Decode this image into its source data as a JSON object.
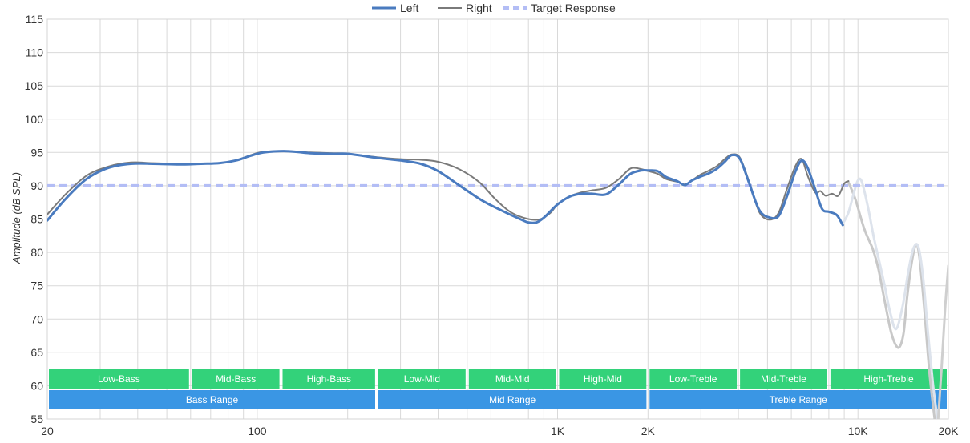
{
  "chart_data": {
    "type": "line",
    "title": "",
    "xlabel": "",
    "ylabel": "Amplitude (dB SPL)",
    "x_scale": "log",
    "xlim": [
      20,
      20000
    ],
    "ylim": [
      55,
      115
    ],
    "grid": true,
    "legend_position": "top-center",
    "x_tick_labels": [
      {
        "value": 20,
        "label": "20"
      },
      {
        "value": 100,
        "label": "100"
      },
      {
        "value": 1000,
        "label": "1K"
      },
      {
        "value": 2000,
        "label": "2K"
      },
      {
        "value": 10000,
        "label": "10K"
      },
      {
        "value": 20000,
        "label": "20K"
      }
    ],
    "y_ticks": [
      55,
      60,
      65,
      70,
      75,
      80,
      85,
      90,
      95,
      100,
      105,
      110,
      115
    ],
    "series": [
      {
        "name": "Left",
        "color": "#4a7bbf",
        "style": "solid",
        "points": [
          [
            20,
            84.8
          ],
          [
            23,
            88
          ],
          [
            27,
            91
          ],
          [
            32,
            92.7
          ],
          [
            38,
            93.3
          ],
          [
            45,
            93.3
          ],
          [
            55,
            93.2
          ],
          [
            65,
            93.3
          ],
          [
            75,
            93.4
          ],
          [
            85,
            93.8
          ],
          [
            95,
            94.5
          ],
          [
            105,
            95.0
          ],
          [
            125,
            95.2
          ],
          [
            150,
            94.9
          ],
          [
            180,
            94.8
          ],
          [
            200,
            94.8
          ],
          [
            250,
            94.2
          ],
          [
            300,
            93.8
          ],
          [
            350,
            93.3
          ],
          [
            400,
            92.2
          ],
          [
            480,
            89.8
          ],
          [
            560,
            87.8
          ],
          [
            650,
            86.3
          ],
          [
            750,
            85.0
          ],
          [
            800,
            84.5
          ],
          [
            850,
            84.5
          ],
          [
            900,
            85.2
          ],
          [
            1000,
            87.2
          ],
          [
            1100,
            88.4
          ],
          [
            1200,
            88.8
          ],
          [
            1300,
            88.8
          ],
          [
            1450,
            88.7
          ],
          [
            1600,
            90.2
          ],
          [
            1750,
            91.8
          ],
          [
            1900,
            92.3
          ],
          [
            2000,
            92.3
          ],
          [
            2150,
            92.2
          ],
          [
            2300,
            91.3
          ],
          [
            2500,
            90.7
          ],
          [
            2650,
            90.1
          ],
          [
            2800,
            90.8
          ],
          [
            3000,
            91.4
          ],
          [
            3200,
            91.9
          ],
          [
            3400,
            92.6
          ],
          [
            3600,
            93.6
          ],
          [
            3800,
            94.6
          ],
          [
            4050,
            94.0
          ],
          [
            4350,
            90.3
          ],
          [
            4700,
            86.3
          ],
          [
            5100,
            85.2
          ],
          [
            5450,
            85.5
          ],
          [
            5800,
            88.4
          ],
          [
            6200,
            92.2
          ],
          [
            6500,
            93.8
          ],
          [
            6800,
            92.7
          ],
          [
            7200,
            89.5
          ],
          [
            7600,
            86.5
          ],
          [
            8000,
            86.1
          ],
          [
            8500,
            85.6
          ],
          [
            8900,
            84.1
          ]
        ]
      },
      {
        "name": "Right",
        "color": "#7a7a7a",
        "style": "solid",
        "points": [
          [
            20,
            85.7
          ],
          [
            23,
            88.7
          ],
          [
            27,
            91.5
          ],
          [
            32,
            92.9
          ],
          [
            38,
            93.5
          ],
          [
            45,
            93.4
          ],
          [
            55,
            93.3
          ],
          [
            65,
            93.3
          ],
          [
            75,
            93.4
          ],
          [
            85,
            93.8
          ],
          [
            95,
            94.6
          ],
          [
            105,
            95.1
          ],
          [
            125,
            95.2
          ],
          [
            150,
            95.0
          ],
          [
            180,
            94.9
          ],
          [
            200,
            94.8
          ],
          [
            250,
            94.3
          ],
          [
            300,
            94.0
          ],
          [
            350,
            93.9
          ],
          [
            400,
            93.6
          ],
          [
            470,
            92.5
          ],
          [
            550,
            90.5
          ],
          [
            620,
            88.0
          ],
          [
            700,
            86.0
          ],
          [
            800,
            85.0
          ],
          [
            880,
            85.0
          ],
          [
            950,
            86.0
          ],
          [
            1000,
            87.2
          ],
          [
            1100,
            88.4
          ],
          [
            1200,
            89.0
          ],
          [
            1300,
            89.3
          ],
          [
            1450,
            89.7
          ],
          [
            1600,
            91.0
          ],
          [
            1750,
            92.6
          ],
          [
            1900,
            92.5
          ],
          [
            2000,
            92.2
          ],
          [
            2150,
            91.8
          ],
          [
            2300,
            91.0
          ],
          [
            2500,
            90.6
          ],
          [
            2650,
            90.2
          ],
          [
            2800,
            90.8
          ],
          [
            3000,
            91.7
          ],
          [
            3200,
            92.3
          ],
          [
            3400,
            93.0
          ],
          [
            3600,
            94.0
          ],
          [
            3800,
            94.7
          ],
          [
            4050,
            94.2
          ],
          [
            4350,
            90.5
          ],
          [
            4700,
            86.0
          ],
          [
            5100,
            84.9
          ],
          [
            5450,
            86.0
          ],
          [
            5800,
            89.5
          ],
          [
            6200,
            93.0
          ],
          [
            6500,
            94.0
          ],
          [
            6800,
            91.5
          ],
          [
            7200,
            89.0
          ],
          [
            7500,
            89.2
          ],
          [
            7800,
            88.5
          ],
          [
            8200,
            88.8
          ],
          [
            8600,
            88.5
          ],
          [
            9000,
            90.3
          ],
          [
            9300,
            90.7
          ]
        ]
      },
      {
        "name": "",
        "color": "#c8c8c8",
        "style": "faded",
        "points": [
          [
            9300,
            90.5
          ],
          [
            9800,
            88.0
          ],
          [
            10500,
            83.5
          ],
          [
            11200,
            80.5
          ],
          [
            11700,
            77.5
          ],
          [
            12300,
            72.5
          ],
          [
            12900,
            68.0
          ],
          [
            13400,
            66.0
          ],
          [
            13800,
            65.9
          ],
          [
            14200,
            68.0
          ],
          [
            14600,
            73.5
          ],
          [
            15100,
            78.5
          ],
          [
            15600,
            81.2
          ],
          [
            16000,
            79.5
          ],
          [
            16600,
            72.0
          ],
          [
            17300,
            62.0
          ],
          [
            18000,
            55.0
          ]
        ]
      },
      {
        "name": "",
        "color": "#dde3ec",
        "style": "faded",
        "points": [
          [
            8900,
            84.3
          ],
          [
            9300,
            86.0
          ],
          [
            9700,
            89.0
          ],
          [
            10000,
            90.8
          ],
          [
            10300,
            90.6
          ],
          [
            10800,
            86.8
          ],
          [
            11300,
            82.2
          ],
          [
            11800,
            78.5
          ],
          [
            12300,
            74.8
          ],
          [
            12800,
            71.0
          ],
          [
            13400,
            68.5
          ],
          [
            14100,
            72.0
          ],
          [
            14700,
            77.0
          ],
          [
            15300,
            80.6
          ],
          [
            15900,
            80.8
          ],
          [
            16500,
            76.0
          ],
          [
            17100,
            68.0
          ],
          [
            17800,
            60.0
          ],
          [
            18400,
            55.0
          ]
        ]
      },
      {
        "name": "",
        "color": "#cfcfcf",
        "style": "faded",
        "points": [
          [
            18500,
            55.0
          ],
          [
            19000,
            63.0
          ],
          [
            19500,
            71.5
          ],
          [
            20000,
            78.0
          ]
        ]
      },
      {
        "name": "Target Response",
        "color": "#b3bdf5",
        "style": "dashed",
        "points": [
          [
            20,
            90
          ],
          [
            20000,
            90
          ]
        ]
      }
    ],
    "range_bands": {
      "color": "#33d27a",
      "labels": [
        {
          "label": "Low-Bass",
          "from": 20,
          "to": 60
        },
        {
          "label": "Mid-Bass",
          "from": 60,
          "to": 120
        },
        {
          "label": "High-Bass",
          "from": 120,
          "to": 250
        },
        {
          "label": "Low-Mid",
          "from": 250,
          "to": 500
        },
        {
          "label": "Mid-Mid",
          "from": 500,
          "to": 1000
        },
        {
          "label": "High-Mid",
          "from": 1000,
          "to": 2000
        },
        {
          "label": "Low-Treble",
          "from": 2000,
          "to": 4000
        },
        {
          "label": "Mid-Treble",
          "from": 4000,
          "to": 8000
        },
        {
          "label": "High-Treble",
          "from": 8000,
          "to": 20000
        }
      ]
    },
    "range_groups": {
      "color": "#3a96e4",
      "labels": [
        {
          "label": "Bass Range",
          "from": 20,
          "to": 250
        },
        {
          "label": "Mid Range",
          "from": 250,
          "to": 2000
        },
        {
          "label": "Treble Range",
          "from": 2000,
          "to": 20000
        }
      ]
    }
  }
}
